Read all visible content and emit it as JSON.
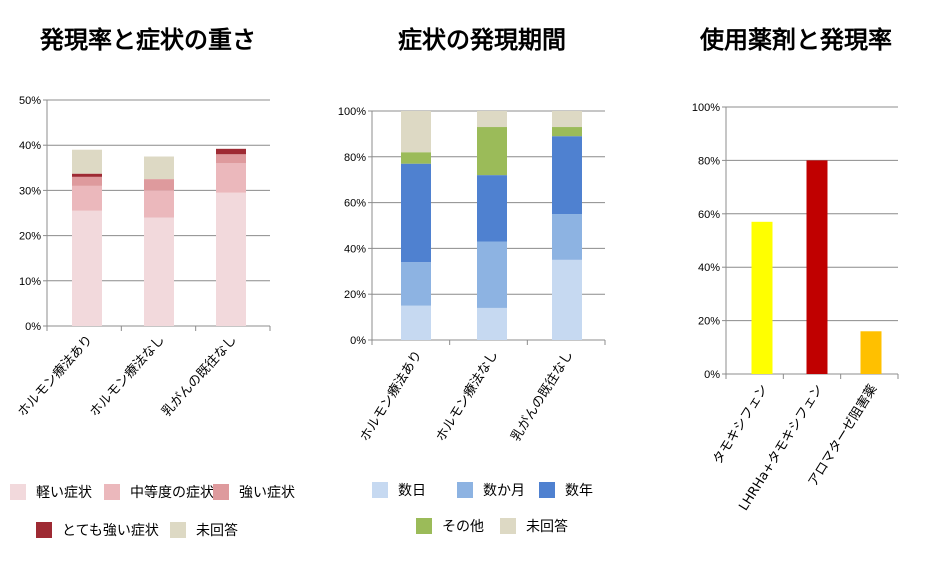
{
  "charts": [
    {
      "title": "発現率と症状の重さ",
      "chart_data": {
        "type": "bar",
        "stacked": true,
        "categories": [
          "ホルモン療法あり",
          "ホルモン療法なし",
          "乳がんの既往なし"
        ],
        "series": [
          {
            "name": "軽い症状",
            "color": "#f2d9dc",
            "values": [
              25.5,
              24,
              29.5
            ]
          },
          {
            "name": "中等度の症状",
            "color": "#ebb8bc",
            "values": [
              5.5,
              6,
              6.5
            ]
          },
          {
            "name": "強い症状",
            "color": "#de9a9d",
            "values": [
              2,
              2.5,
              2
            ]
          },
          {
            "name": "とても強い症状",
            "color": "#9e2a33",
            "values": [
              0.7,
              0,
              1.2
            ]
          },
          {
            "name": "未回答",
            "color": "#ddd9c4",
            "values": [
              5.3,
              5,
              0
            ]
          }
        ],
        "ylim": [
          0,
          50
        ],
        "yticks": [
          "0%",
          "10%",
          "20%",
          "30%",
          "40%",
          "50%"
        ],
        "grid": true,
        "legend": "bottom"
      }
    },
    {
      "title": "症状の発現期間",
      "chart_data": {
        "type": "bar",
        "stacked": true,
        "categories": [
          "ホルモン療法あり",
          "ホルモン療法なし",
          "乳がんの既往なし"
        ],
        "series": [
          {
            "name": "数日",
            "color": "#c6d9f1",
            "values": [
              15,
              14,
              35
            ]
          },
          {
            "name": "数か月",
            "color": "#8db3e2",
            "values": [
              19,
              29,
              20
            ]
          },
          {
            "name": "数年",
            "color": "#4f81d0",
            "values": [
              43,
              29,
              34
            ]
          },
          {
            "name": "その他",
            "color": "#9bbb59",
            "values": [
              5,
              21,
              4
            ]
          },
          {
            "name": "未回答",
            "color": "#ddd9c4",
            "values": [
              18,
              7,
              7
            ]
          }
        ],
        "ylim": [
          0,
          100
        ],
        "yticks": [
          "0%",
          "20%",
          "40%",
          "60%",
          "80%",
          "100%"
        ],
        "grid": true,
        "legend": "bottom"
      }
    },
    {
      "title": "使用薬剤と発現率",
      "chart_data": {
        "type": "bar",
        "categories": [
          "タモキシフェン",
          "LHRHa+タモキシフェン",
          "アロマターゼ阻害薬"
        ],
        "values": [
          57,
          80,
          16
        ],
        "colors": [
          "#ffff00",
          "#c00000",
          "#ffc000"
        ],
        "ylim": [
          0,
          100
        ],
        "yticks": [
          "0%",
          "20%",
          "40%",
          "60%",
          "80%",
          "100%"
        ],
        "grid": true
      }
    }
  ]
}
